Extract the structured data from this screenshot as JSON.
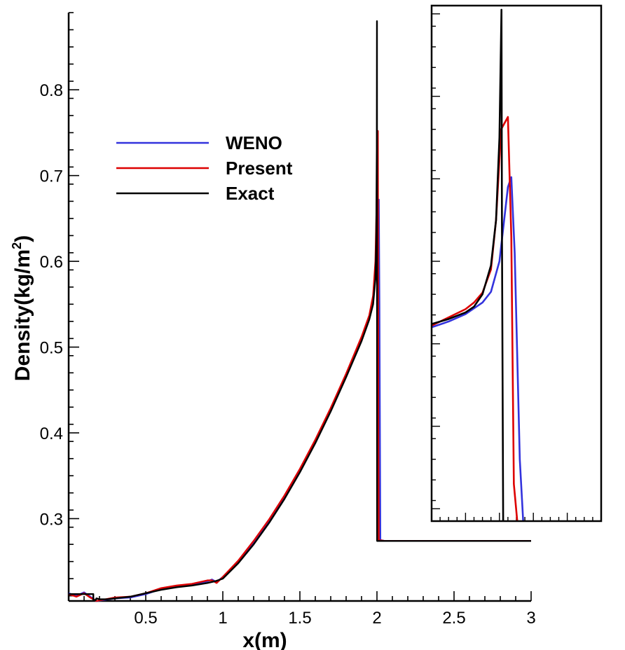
{
  "chart_data": [
    {
      "type": "line",
      "xlabel": "x(m)",
      "ylabel": "Density(kg/m",
      "ylabel_sup": "2",
      "ylabel_close": ")",
      "xlim": [
        0,
        3.0
      ],
      "ylim": [
        0.204,
        0.89
      ],
      "xticks": [
        {
          "value": 0.5,
          "label": "0.5"
        },
        {
          "value": 1.0,
          "label": "1"
        },
        {
          "value": 1.5,
          "label": "1.5"
        },
        {
          "value": 2.0,
          "label": "2"
        },
        {
          "value": 2.5,
          "label": "2.5"
        },
        {
          "value": 3.0,
          "label": "3"
        }
      ],
      "yticks": [
        {
          "value": 0.3,
          "label": "0.3"
        },
        {
          "value": 0.4,
          "label": "0.4"
        },
        {
          "value": 0.5,
          "label": "0.5"
        },
        {
          "value": 0.6,
          "label": "0.6"
        },
        {
          "value": 0.7,
          "label": "0.7"
        },
        {
          "value": 0.8,
          "label": "0.8"
        }
      ],
      "grid": false,
      "legend": "upper-left",
      "series": [
        {
          "name": "WENO",
          "color": "#3333dd",
          "points": [
            [
              0.0,
              0.213
            ],
            [
              0.05,
              0.21
            ],
            [
              0.1,
              0.214
            ],
            [
              0.14,
              0.209
            ],
            [
              0.18,
              0.204
            ],
            [
              0.3,
              0.207
            ],
            [
              0.4,
              0.208
            ],
            [
              0.5,
              0.212
            ],
            [
              0.6,
              0.218
            ],
            [
              0.7,
              0.221
            ],
            [
              0.8,
              0.223
            ],
            [
              0.9,
              0.227
            ],
            [
              0.93,
              0.229
            ],
            [
              0.96,
              0.226
            ],
            [
              1.0,
              0.232
            ],
            [
              1.1,
              0.25
            ],
            [
              1.2,
              0.272
            ],
            [
              1.3,
              0.297
            ],
            [
              1.4,
              0.325
            ],
            [
              1.5,
              0.356
            ],
            [
              1.6,
              0.39
            ],
            [
              1.7,
              0.427
            ],
            [
              1.8,
              0.467
            ],
            [
              1.9,
              0.51
            ],
            [
              1.95,
              0.535
            ],
            [
              1.975,
              0.555
            ],
            [
              1.99,
              0.585
            ],
            [
              2.005,
              0.66
            ],
            [
              2.012,
              0.672
            ],
            [
              2.016,
              0.55
            ],
            [
              2.022,
              0.275
            ],
            [
              2.05,
              0.274
            ],
            [
              3.0,
              0.274
            ]
          ]
        },
        {
          "name": "Present",
          "color": "#dd0000",
          "points": [
            [
              0.0,
              0.212
            ],
            [
              0.05,
              0.209
            ],
            [
              0.1,
              0.213
            ],
            [
              0.14,
              0.208
            ],
            [
              0.18,
              0.204
            ],
            [
              0.3,
              0.208
            ],
            [
              0.4,
              0.209
            ],
            [
              0.5,
              0.213
            ],
            [
              0.6,
              0.219
            ],
            [
              0.7,
              0.222
            ],
            [
              0.8,
              0.224
            ],
            [
              0.9,
              0.228
            ],
            [
              0.93,
              0.228
            ],
            [
              0.96,
              0.225
            ],
            [
              1.0,
              0.232
            ],
            [
              1.1,
              0.251
            ],
            [
              1.2,
              0.274
            ],
            [
              1.3,
              0.299
            ],
            [
              1.4,
              0.327
            ],
            [
              1.5,
              0.358
            ],
            [
              1.6,
              0.392
            ],
            [
              1.7,
              0.429
            ],
            [
              1.8,
              0.469
            ],
            [
              1.9,
              0.512
            ],
            [
              1.95,
              0.537
            ],
            [
              1.975,
              0.56
            ],
            [
              1.99,
              0.6
            ],
            [
              2.0,
              0.685
            ],
            [
              2.003,
              0.745
            ],
            [
              2.006,
              0.752
            ],
            [
              2.009,
              0.4
            ],
            [
              2.012,
              0.275
            ],
            [
              2.05,
              0.274
            ],
            [
              3.0,
              0.274
            ]
          ]
        },
        {
          "name": "Exact",
          "color": "#000000",
          "points": [
            [
              0.0,
              0.212
            ],
            [
              0.05,
              0.212
            ],
            [
              0.1,
              0.212
            ],
            [
              0.16,
              0.212
            ],
            [
              0.16,
              0.205
            ],
            [
              0.175,
              0.205
            ],
            [
              0.18,
              0.207
            ],
            [
              0.2,
              0.206
            ],
            [
              0.25,
              0.206
            ],
            [
              0.3,
              0.207
            ],
            [
              0.4,
              0.209
            ],
            [
              0.5,
              0.213
            ],
            [
              0.6,
              0.217
            ],
            [
              0.7,
              0.22
            ],
            [
              0.8,
              0.222
            ],
            [
              0.9,
              0.225
            ],
            [
              0.95,
              0.227
            ],
            [
              1.0,
              0.23
            ],
            [
              1.1,
              0.248
            ],
            [
              1.2,
              0.27
            ],
            [
              1.3,
              0.295
            ],
            [
              1.4,
              0.323
            ],
            [
              1.5,
              0.354
            ],
            [
              1.6,
              0.388
            ],
            [
              1.7,
              0.425
            ],
            [
              1.8,
              0.465
            ],
            [
              1.9,
              0.507
            ],
            [
              1.95,
              0.532
            ],
            [
              1.975,
              0.55
            ],
            [
              1.99,
              0.58
            ],
            [
              1.995,
              0.62
            ],
            [
              1.999,
              0.73
            ],
            [
              2.0,
              0.88
            ],
            [
              2.001,
              0.274
            ],
            [
              3.0,
              0.274
            ]
          ]
        }
      ]
    },
    {
      "type": "line",
      "note_inset": "magnified view of the peak",
      "xlim": [
        1.96,
        2.06
      ],
      "ylim": [
        0.255,
        0.88
      ],
      "xticks_major": [
        1.96,
        1.98,
        2.0,
        2.02,
        2.04,
        2.06
      ],
      "xticks_minor_step": 0.005,
      "yticks_major": [
        0.27,
        0.37,
        0.47,
        0.57,
        0.67,
        0.77,
        0.87
      ],
      "yticks_minor_step": 0.025,
      "series": [
        {
          "name": "WENO",
          "color": "#3333dd",
          "points": [
            [
              1.96,
              0.49
            ],
            [
              1.97,
              0.497
            ],
            [
              1.98,
              0.506
            ],
            [
              1.99,
              0.52
            ],
            [
              1.995,
              0.533
            ],
            [
              2.0,
              0.57
            ],
            [
              2.005,
              0.66
            ],
            [
              2.007,
              0.672
            ],
            [
              2.009,
              0.58
            ],
            [
              2.012,
              0.33
            ],
            [
              2.014,
              0.255
            ]
          ]
        },
        {
          "name": "Present",
          "color": "#dd0000",
          "points": [
            [
              1.96,
              0.492
            ],
            [
              1.97,
              0.502
            ],
            [
              1.98,
              0.512
            ],
            [
              1.985,
              0.52
            ],
            [
              1.99,
              0.532
            ],
            [
              1.995,
              0.56
            ],
            [
              1.998,
              0.62
            ],
            [
              2.001,
              0.73
            ],
            [
              2.005,
              0.745
            ],
            [
              2.007,
              0.6
            ],
            [
              2.0085,
              0.3
            ],
            [
              2.0105,
              0.255
            ]
          ]
        },
        {
          "name": "Exact",
          "color": "#000000",
          "points": [
            [
              1.96,
              0.494
            ],
            [
              1.97,
              0.5
            ],
            [
              1.98,
              0.508
            ],
            [
              1.985,
              0.515
            ],
            [
              1.99,
              0.53
            ],
            [
              1.995,
              0.565
            ],
            [
              1.998,
              0.62
            ],
            [
              2.0,
              0.72
            ],
            [
              2.0012,
              0.875
            ],
            [
              2.0015,
              0.6
            ],
            [
              2.0022,
              0.255
            ]
          ]
        }
      ]
    }
  ]
}
